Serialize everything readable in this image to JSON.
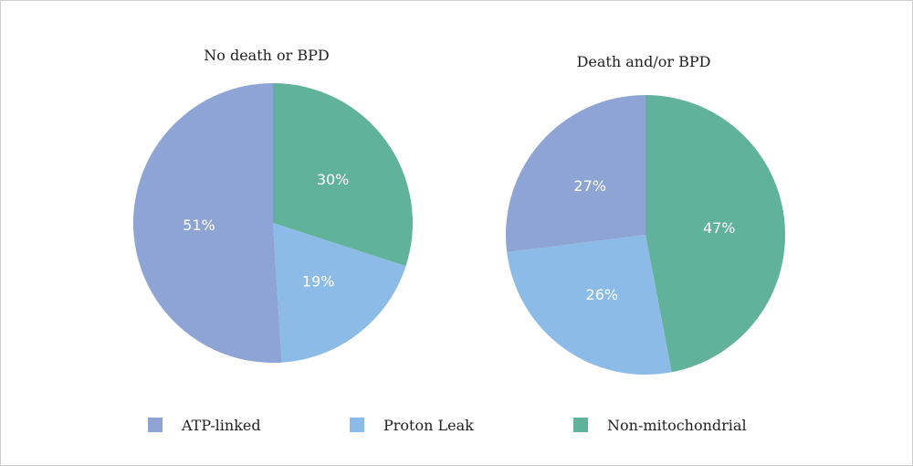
{
  "chart_data": [
    {
      "type": "pie",
      "title": "No death or BPD",
      "start_angle_deg": 0,
      "direction": "clockwise",
      "slices": [
        {
          "name": "Non-mitochondrial",
          "value": 30,
          "label": "30%",
          "color": "#61b29b"
        },
        {
          "name": "Proton Leak",
          "value": 19,
          "label": "19%",
          "color": "#8bbbe6"
        },
        {
          "name": "ATP-linked",
          "value": 51,
          "label": "51%",
          "color": "#8ea4d4"
        }
      ]
    },
    {
      "type": "pie",
      "title": "Death and/or BPD",
      "start_angle_deg": 0,
      "direction": "clockwise",
      "slices": [
        {
          "name": "Non-mitochondrial",
          "value": 47,
          "label": "47%",
          "color": "#61b29b"
        },
        {
          "name": "Proton Leak",
          "value": 26,
          "label": "26%",
          "color": "#8bbbe6"
        },
        {
          "name": "ATP-linked",
          "value": 27,
          "label": "27%",
          "color": "#8ea4d4"
        }
      ]
    }
  ],
  "legend": {
    "placement": "bottom",
    "items": [
      {
        "label": "ATP-linked",
        "color": "#8ea4d4"
      },
      {
        "label": "Proton Leak",
        "color": "#8bbbe6"
      },
      {
        "label": "Non-mitochondrial",
        "color": "#61b29b"
      }
    ]
  }
}
